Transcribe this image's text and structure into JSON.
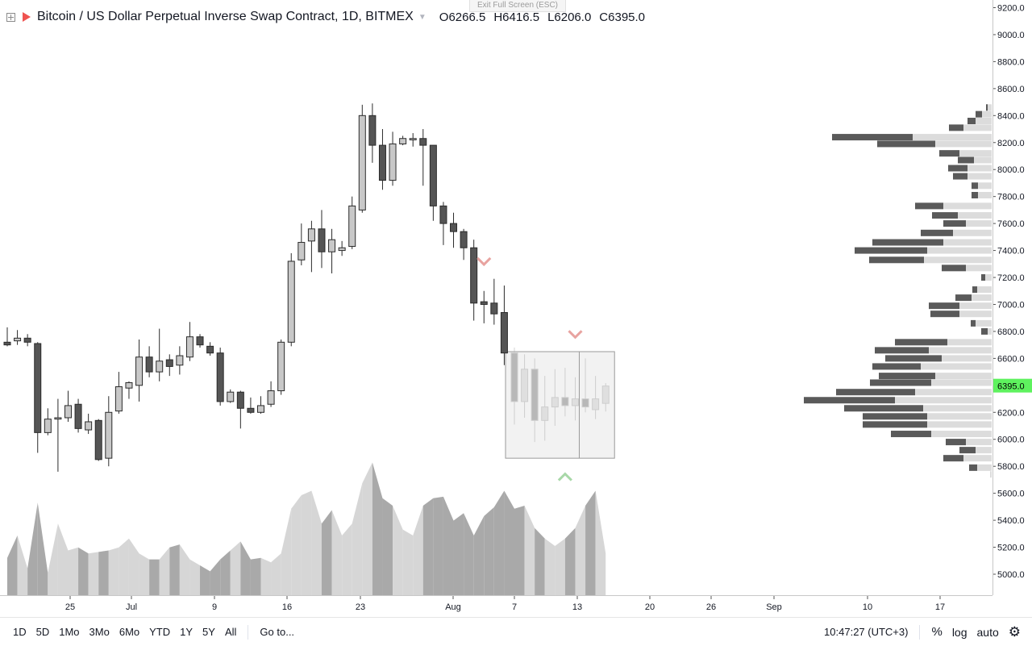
{
  "legend": {
    "title": "Bitcoin / US Dollar Perpetual Inverse Swap Contract, 1D, BITMEX",
    "open_label": "O",
    "open": "6266.5",
    "high_label": "H",
    "high": "6416.5",
    "low_label": "L",
    "low": "6206.0",
    "close_label": "C",
    "close": "6395.0"
  },
  "exit_fullscreen": "Exit Full Screen (ESC)",
  "price_axis": {
    "labels": [
      "9200.0",
      "9000.0",
      "8800.0",
      "8600.0",
      "8400.0",
      "8200.0",
      "8000.0",
      "7800.0",
      "7600.0",
      "7400.0",
      "7200.0",
      "7000.0",
      "6800.0",
      "6600.0",
      "6400.0",
      "6200.0",
      "6000.0",
      "5800.0",
      "5600.0",
      "5400.0",
      "5200.0",
      "5000.0"
    ],
    "last_price": "6395.0",
    "last_price_color": "#5ef25e"
  },
  "time_axis": {
    "labels": [
      "25",
      "Jul",
      "9",
      "16",
      "23",
      "Aug",
      "7",
      "13",
      "20",
      "26",
      "Sep",
      "10",
      "17"
    ]
  },
  "toolbar": {
    "ranges": [
      "1D",
      "5D",
      "1Mo",
      "3Mo",
      "6Mo",
      "YTD",
      "1Y",
      "5Y",
      "All"
    ],
    "goto": "Go to...",
    "clock": "10:47:27 (UTC+3)",
    "percent": "%",
    "log": "log",
    "auto": "auto",
    "settings_icon": "gear-icon"
  },
  "colors": {
    "up_candle": "#c8c8c8",
    "down_candle": "#555555",
    "volume_light": "#d6d6d6",
    "volume_dark": "#a9a9a9",
    "sell_marker": "#e8a3a0",
    "buy_marker": "#a8d8a8"
  },
  "chart_data": {
    "type": "candlestick",
    "candles": [
      {
        "o": 6720,
        "h": 6830,
        "l": 6690,
        "c": 6700
      },
      {
        "o": 6730,
        "h": 6810,
        "l": 6700,
        "c": 6750
      },
      {
        "o": 6750,
        "h": 6780,
        "l": 6690,
        "c": 6720
      },
      {
        "o": 6710,
        "h": 6720,
        "l": 5900,
        "c": 6050
      },
      {
        "o": 6050,
        "h": 6230,
        "l": 6030,
        "c": 6150
      },
      {
        "o": 6150,
        "h": 6300,
        "l": 5760,
        "c": 6160
      },
      {
        "o": 6160,
        "h": 6360,
        "l": 6130,
        "c": 6250
      },
      {
        "o": 6260,
        "h": 6300,
        "l": 6050,
        "c": 6080
      },
      {
        "o": 6070,
        "h": 6190,
        "l": 6040,
        "c": 6130
      },
      {
        "o": 6140,
        "h": 6150,
        "l": 5840,
        "c": 5850
      },
      {
        "o": 5860,
        "h": 6320,
        "l": 5800,
        "c": 6200
      },
      {
        "o": 6210,
        "h": 6500,
        "l": 6190,
        "c": 6390
      },
      {
        "o": 6380,
        "h": 6430,
        "l": 6300,
        "c": 6420
      },
      {
        "o": 6400,
        "h": 6740,
        "l": 6280,
        "c": 6610
      },
      {
        "o": 6610,
        "h": 6690,
        "l": 6460,
        "c": 6500
      },
      {
        "o": 6500,
        "h": 6820,
        "l": 6430,
        "c": 6580
      },
      {
        "o": 6590,
        "h": 6630,
        "l": 6470,
        "c": 6540
      },
      {
        "o": 6550,
        "h": 6690,
        "l": 6480,
        "c": 6620
      },
      {
        "o": 6610,
        "h": 6870,
        "l": 6580,
        "c": 6760
      },
      {
        "o": 6760,
        "h": 6780,
        "l": 6680,
        "c": 6700
      },
      {
        "o": 6690,
        "h": 6720,
        "l": 6620,
        "c": 6640
      },
      {
        "o": 6640,
        "h": 6680,
        "l": 6250,
        "c": 6280
      },
      {
        "o": 6280,
        "h": 6370,
        "l": 6270,
        "c": 6350
      },
      {
        "o": 6350,
        "h": 6360,
        "l": 6080,
        "c": 6230
      },
      {
        "o": 6230,
        "h": 6310,
        "l": 6190,
        "c": 6200
      },
      {
        "o": 6200,
        "h": 6320,
        "l": 6190,
        "c": 6250
      },
      {
        "o": 6260,
        "h": 6430,
        "l": 6240,
        "c": 6360
      },
      {
        "o": 6360,
        "h": 6740,
        "l": 6330,
        "c": 6720
      },
      {
        "o": 6720,
        "h": 7380,
        "l": 6690,
        "c": 7320
      },
      {
        "o": 7330,
        "h": 7600,
        "l": 7290,
        "c": 7460
      },
      {
        "o": 7470,
        "h": 7620,
        "l": 7240,
        "c": 7560
      },
      {
        "o": 7560,
        "h": 7700,
        "l": 7270,
        "c": 7390
      },
      {
        "o": 7390,
        "h": 7560,
        "l": 7230,
        "c": 7480
      },
      {
        "o": 7400,
        "h": 7470,
        "l": 7360,
        "c": 7420
      },
      {
        "o": 7430,
        "h": 7800,
        "l": 7410,
        "c": 7730
      },
      {
        "o": 7700,
        "h": 8480,
        "l": 7680,
        "c": 8400
      },
      {
        "o": 8400,
        "h": 8490,
        "l": 8050,
        "c": 8180
      },
      {
        "o": 8180,
        "h": 8300,
        "l": 7850,
        "c": 7920
      },
      {
        "o": 7920,
        "h": 8280,
        "l": 7880,
        "c": 8190
      },
      {
        "o": 8190,
        "h": 8250,
        "l": 8180,
        "c": 8230
      },
      {
        "o": 8220,
        "h": 8270,
        "l": 8170,
        "c": 8230
      },
      {
        "o": 8230,
        "h": 8300,
        "l": 7880,
        "c": 8180
      },
      {
        "o": 8180,
        "h": 8180,
        "l": 7620,
        "c": 7730
      },
      {
        "o": 7730,
        "h": 7760,
        "l": 7440,
        "c": 7600
      },
      {
        "o": 7600,
        "h": 7680,
        "l": 7420,
        "c": 7540
      },
      {
        "o": 7540,
        "h": 7560,
        "l": 7330,
        "c": 7420
      },
      {
        "o": 7420,
        "h": 7480,
        "l": 6880,
        "c": 7010
      },
      {
        "o": 7020,
        "h": 7100,
        "l": 6860,
        "c": 7000
      },
      {
        "o": 7010,
        "h": 7190,
        "l": 6850,
        "c": 6930
      },
      {
        "o": 6940,
        "h": 7140,
        "l": 6550,
        "c": 6640
      },
      {
        "o": 6640,
        "h": 6680,
        "l": 6110,
        "c": 6280
      },
      {
        "o": 6280,
        "h": 6630,
        "l": 6160,
        "c": 6520
      },
      {
        "o": 6520,
        "h": 6600,
        "l": 5980,
        "c": 6140
      },
      {
        "o": 6140,
        "h": 6470,
        "l": 5990,
        "c": 6240
      },
      {
        "o": 6240,
        "h": 6520,
        "l": 6100,
        "c": 6310
      },
      {
        "o": 6310,
        "h": 6530,
        "l": 6170,
        "c": 6250
      },
      {
        "o": 6250,
        "h": 6460,
        "l": 6140,
        "c": 6300
      },
      {
        "o": 6300,
        "h": 6600,
        "l": 6200,
        "c": 6240
      },
      {
        "o": 6220,
        "h": 6470,
        "l": 6150,
        "c": 6300
      },
      {
        "o": 6266.5,
        "h": 6416.5,
        "l": 6206,
        "c": 6395
      }
    ],
    "volume": [
      0.25,
      0.4,
      0.18,
      0.62,
      0.15,
      0.48,
      0.3,
      0.32,
      0.28,
      0.29,
      0.3,
      0.32,
      0.38,
      0.28,
      0.24,
      0.24,
      0.32,
      0.34,
      0.24,
      0.2,
      0.16,
      0.24,
      0.3,
      0.36,
      0.24,
      0.25,
      0.22,
      0.28,
      0.58,
      0.67,
      0.7,
      0.48,
      0.57,
      0.4,
      0.48,
      0.75,
      0.89,
      0.65,
      0.6,
      0.44,
      0.4,
      0.6,
      0.65,
      0.66,
      0.5,
      0.55,
      0.4,
      0.53,
      0.59,
      0.7,
      0.58,
      0.6,
      0.45,
      0.38,
      0.33,
      0.38,
      0.45,
      0.6,
      0.7,
      0.28
    ],
    "volume_profile": [
      {
        "p": 8460,
        "buy": 5,
        "sell": 2
      },
      {
        "p": 8410,
        "buy": 12,
        "sell": 8
      },
      {
        "p": 8360,
        "buy": 20,
        "sell": 10
      },
      {
        "p": 8310,
        "buy": 35,
        "sell": 18
      },
      {
        "p": 8240,
        "buy": 98,
        "sell": 100
      },
      {
        "p": 8190,
        "buy": 70,
        "sell": 72
      },
      {
        "p": 8120,
        "buy": 40,
        "sell": 25
      },
      {
        "p": 8070,
        "buy": 22,
        "sell": 20
      },
      {
        "p": 8010,
        "buy": 30,
        "sell": 24
      },
      {
        "p": 7950,
        "buy": 30,
        "sell": 18
      },
      {
        "p": 7880,
        "buy": 17,
        "sell": 8
      },
      {
        "p": 7810,
        "buy": 17,
        "sell": 8
      },
      {
        "p": 7730,
        "buy": 60,
        "sell": 35
      },
      {
        "p": 7660,
        "buy": 42,
        "sell": 32
      },
      {
        "p": 7600,
        "buy": 32,
        "sell": 28
      },
      {
        "p": 7530,
        "buy": 48,
        "sell": 40
      },
      {
        "p": 7460,
        "buy": 60,
        "sell": 88
      },
      {
        "p": 7400,
        "buy": 80,
        "sell": 90
      },
      {
        "p": 7330,
        "buy": 84,
        "sell": 68
      },
      {
        "p": 7270,
        "buy": 32,
        "sell": 30
      },
      {
        "p": 7200,
        "buy": 8,
        "sell": 5
      },
      {
        "p": 7110,
        "buy": 18,
        "sell": 6
      },
      {
        "p": 7050,
        "buy": 25,
        "sell": 20
      },
      {
        "p": 6990,
        "buy": 40,
        "sell": 38
      },
      {
        "p": 6930,
        "buy": 40,
        "sell": 36
      },
      {
        "p": 6860,
        "buy": 20,
        "sell": 6
      },
      {
        "p": 6800,
        "buy": 5,
        "sell": 8
      },
      {
        "p": 6720,
        "buy": 55,
        "sell": 65
      },
      {
        "p": 6660,
        "buy": 78,
        "sell": 67
      },
      {
        "p": 6600,
        "buy": 62,
        "sell": 70
      },
      {
        "p": 6540,
        "buy": 88,
        "sell": 60
      },
      {
        "p": 6470,
        "buy": 70,
        "sell": 70
      },
      {
        "p": 6420,
        "buy": 75,
        "sell": 76
      },
      {
        "p": 6350,
        "buy": 95,
        "sell": 98
      },
      {
        "p": 6290,
        "buy": 120,
        "sell": 113
      },
      {
        "p": 6230,
        "buy": 85,
        "sell": 98
      },
      {
        "p": 6170,
        "buy": 80,
        "sell": 80
      },
      {
        "p": 6110,
        "buy": 80,
        "sell": 80
      },
      {
        "p": 6040,
        "buy": 75,
        "sell": 50
      },
      {
        "p": 5980,
        "buy": 32,
        "sell": 25
      },
      {
        "p": 5920,
        "buy": 20,
        "sell": 20
      },
      {
        "p": 5860,
        "buy": 35,
        "sell": 25
      },
      {
        "p": 5790,
        "buy": 18,
        "sell": 10
      },
      {
        "p": 5740,
        "buy": 2,
        "sell": 0
      }
    ],
    "markers": [
      {
        "type": "sell",
        "index": 47,
        "price": 7320
      },
      {
        "type": "sell",
        "index": 56,
        "price": 6780
      },
      {
        "type": "buy",
        "index": 55,
        "price": 5720
      }
    ],
    "highlight_box": {
      "index_from": 50,
      "index_to": 59,
      "price_high": 6650,
      "price_low": 5860,
      "divider_index": 56
    },
    "ylim": [
      4850,
      9250
    ],
    "log_scale": false,
    "grid": false
  }
}
